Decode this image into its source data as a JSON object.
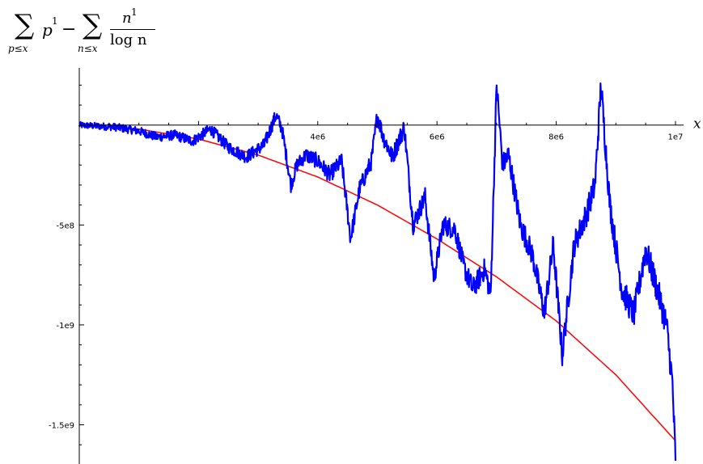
{
  "title": {
    "sum_symbol": "∑",
    "sum1_index": "p≤x",
    "sum1_term": "p",
    "sum1_exp": "1",
    "minus": "−",
    "sum2_index": "n≤x",
    "frac_num": "n",
    "frac_num_exp": "1",
    "frac_den": "log n"
  },
  "chart_data": {
    "type": "line",
    "xlabel": "x",
    "ylabel": "",
    "xlim": [
      0,
      10000000
    ],
    "ylim": [
      -1680000000,
      270000000
    ],
    "x_ticks": [
      {
        "value": 4000000,
        "label": "4e6"
      },
      {
        "value": 6000000,
        "label": "6e6"
      },
      {
        "value": 8000000,
        "label": "8e6"
      },
      {
        "value": 10000000,
        "label": "1e7"
      }
    ],
    "y_ticks": [
      {
        "value": -500000000,
        "label": "-5e8"
      },
      {
        "value": -1000000000,
        "label": "-1e9"
      },
      {
        "value": -1500000000,
        "label": "-1.5e9"
      }
    ],
    "grid": false,
    "series": [
      {
        "color": "#ff0000",
        "style": "smooth",
        "x": [
          0,
          1000000,
          2000000,
          3000000,
          4000000,
          5000000,
          6000000,
          7000000,
          8000000,
          9000000,
          10000000
        ],
        "y": [
          0,
          -20000000,
          -70000000,
          -150000000,
          -260000000,
          -400000000,
          -570000000,
          -760000000,
          -980000000,
          -1250000000,
          -1580000000
        ]
      },
      {
        "color": "#0000ff",
        "style": "jagged",
        "x": [
          0,
          300000,
          600000,
          1000000,
          1300000,
          1600000,
          1900000,
          2200000,
          2500000,
          2800000,
          3100000,
          3300000,
          3400000,
          3550000,
          3650000,
          3800000,
          4000000,
          4200000,
          4400000,
          4550000,
          4700000,
          4900000,
          5000000,
          5100000,
          5250000,
          5450000,
          5600000,
          5800000,
          5950000,
          6100000,
          6300000,
          6450000,
          6600000,
          6800000,
          6900000,
          7000000,
          7100000,
          7200000,
          7400000,
          7600000,
          7800000,
          7950000,
          8100000,
          8300000,
          8500000,
          8650000,
          8750000,
          8900000,
          9100000,
          9300000,
          9500000,
          9700000,
          9850000,
          9950000,
          10000000
        ],
        "y": [
          0,
          -5000000,
          -10000000,
          -30000000,
          -60000000,
          -50000000,
          -80000000,
          -20000000,
          -110000000,
          -160000000,
          -100000000,
          50000000,
          -20000000,
          -300000000,
          -200000000,
          -150000000,
          -180000000,
          -250000000,
          -180000000,
          -570000000,
          -320000000,
          -180000000,
          50000000,
          -60000000,
          -160000000,
          -10000000,
          -500000000,
          -360000000,
          -770000000,
          -500000000,
          -520000000,
          -710000000,
          -820000000,
          -720000000,
          -850000000,
          200000000,
          -200000000,
          -150000000,
          -500000000,
          -650000000,
          -940000000,
          -600000000,
          -1150000000,
          -600000000,
          -450000000,
          -300000000,
          200000000,
          -400000000,
          -820000000,
          -950000000,
          -620000000,
          -830000000,
          -1000000000,
          -1300000000,
          -1680000000
        ]
      }
    ]
  }
}
